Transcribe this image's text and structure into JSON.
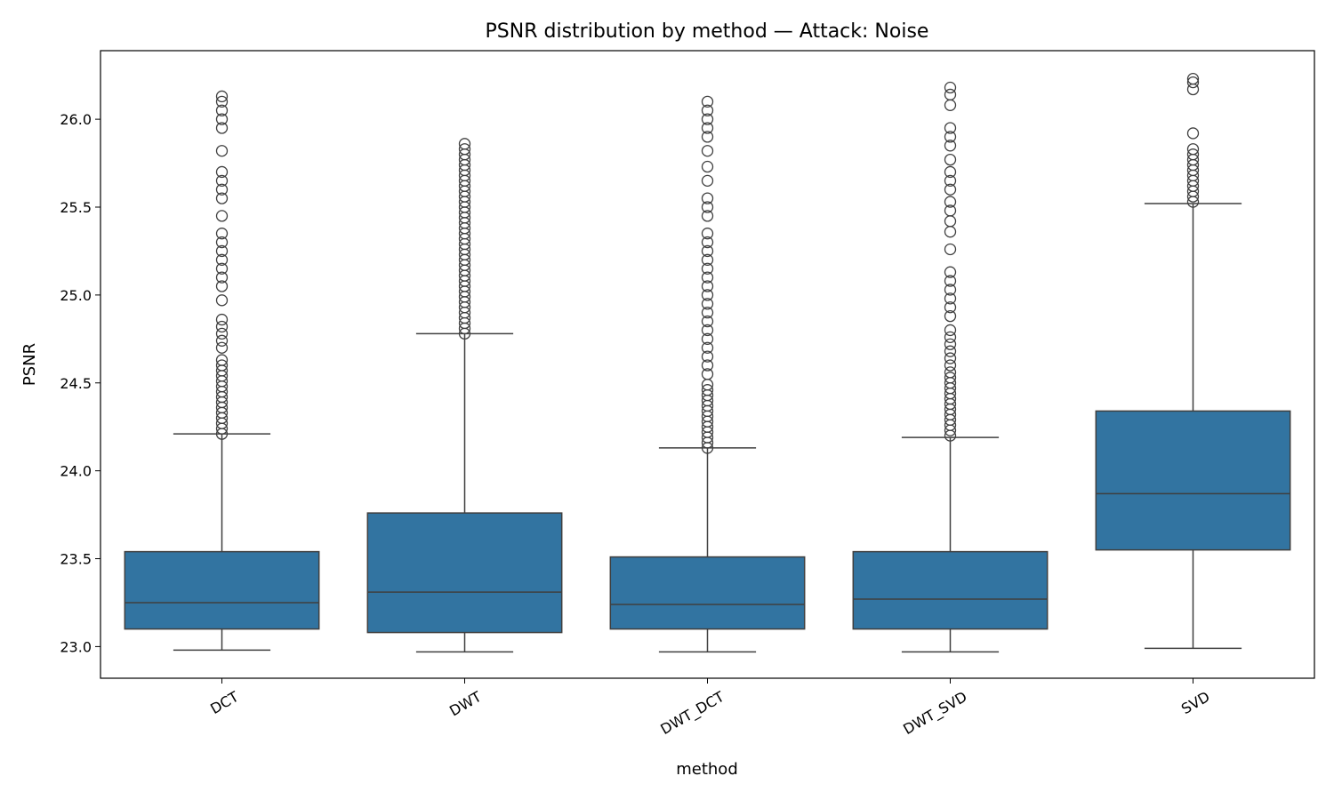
{
  "chart_data": {
    "type": "box",
    "title": "PSNR distribution by method — Attack: Noise",
    "xlabel": "method",
    "ylabel": "PSNR",
    "ylim": [
      22.82,
      26.39
    ],
    "yticks": [
      23.0,
      23.5,
      24.0,
      24.5,
      25.0,
      25.5,
      26.0
    ],
    "ytick_labels": [
      "23.0",
      "23.5",
      "24.0",
      "24.5",
      "25.0",
      "25.5",
      "26.0"
    ],
    "grid": false,
    "color": "#3274a1",
    "categories": [
      "DCT",
      "DWT",
      "DWT_DCT",
      "DWT_SVD",
      "SVD"
    ],
    "boxes": [
      {
        "category": "DCT",
        "whisker_low": 22.98,
        "q1": 23.1,
        "median": 23.25,
        "q3": 23.54,
        "whisker_high": 24.21,
        "outliers": [
          24.21,
          24.24,
          24.27,
          24.3,
          24.33,
          24.36,
          24.39,
          24.42,
          24.45,
          24.48,
          24.51,
          24.54,
          24.57,
          24.6,
          24.63,
          24.7,
          24.74,
          24.78,
          24.82,
          24.86,
          24.97,
          25.05,
          25.1,
          25.15,
          25.2,
          25.25,
          25.3,
          25.35,
          25.45,
          25.55,
          25.6,
          25.65,
          25.7,
          25.82,
          25.95,
          26.0,
          26.05,
          26.1,
          26.13
        ]
      },
      {
        "category": "DWT",
        "whisker_low": 22.97,
        "q1": 23.08,
        "median": 23.31,
        "q3": 23.76,
        "whisker_high": 24.78,
        "outliers": [
          24.78,
          24.81,
          24.84,
          24.87,
          24.9,
          24.93,
          24.96,
          24.99,
          25.02,
          25.05,
          25.08,
          25.11,
          25.14,
          25.17,
          25.2,
          25.23,
          25.26,
          25.29,
          25.32,
          25.35,
          25.38,
          25.41,
          25.44,
          25.47,
          25.5,
          25.53,
          25.56,
          25.59,
          25.62,
          25.65,
          25.68,
          25.71,
          25.74,
          25.77,
          25.8,
          25.83,
          25.86
        ]
      },
      {
        "category": "DWT_DCT",
        "whisker_low": 22.97,
        "q1": 23.1,
        "median": 23.24,
        "q3": 23.51,
        "whisker_high": 24.13,
        "outliers": [
          24.13,
          24.16,
          24.19,
          24.22,
          24.25,
          24.28,
          24.31,
          24.34,
          24.37,
          24.4,
          24.43,
          24.46,
          24.49,
          24.55,
          24.6,
          24.65,
          24.7,
          24.75,
          24.8,
          24.85,
          24.9,
          24.95,
          25.0,
          25.05,
          25.1,
          25.15,
          25.2,
          25.25,
          25.3,
          25.35,
          25.45,
          25.5,
          25.55,
          25.65,
          25.73,
          25.82,
          25.9,
          25.95,
          26.0,
          26.05,
          26.1
        ]
      },
      {
        "category": "DWT_SVD",
        "whisker_low": 22.97,
        "q1": 23.1,
        "median": 23.27,
        "q3": 23.54,
        "whisker_high": 24.19,
        "outliers": [
          24.2,
          24.23,
          24.26,
          24.29,
          24.32,
          24.35,
          24.38,
          24.41,
          24.44,
          24.47,
          24.5,
          24.53,
          24.56,
          24.6,
          24.64,
          24.68,
          24.72,
          24.76,
          24.8,
          24.88,
          24.93,
          24.98,
          25.03,
          25.08,
          25.13,
          25.26,
          25.36,
          25.42,
          25.48,
          25.53,
          25.6,
          25.65,
          25.7,
          25.77,
          25.85,
          25.9,
          25.95,
          26.08,
          26.14,
          26.18
        ]
      },
      {
        "category": "SVD",
        "whisker_low": 22.99,
        "q1": 23.55,
        "median": 23.87,
        "q3": 24.34,
        "whisker_high": 25.52,
        "outliers": [
          25.53,
          25.56,
          25.59,
          25.62,
          25.65,
          25.68,
          25.71,
          25.74,
          25.77,
          25.8,
          25.83,
          25.92,
          26.17,
          26.21,
          26.23
        ]
      }
    ]
  }
}
